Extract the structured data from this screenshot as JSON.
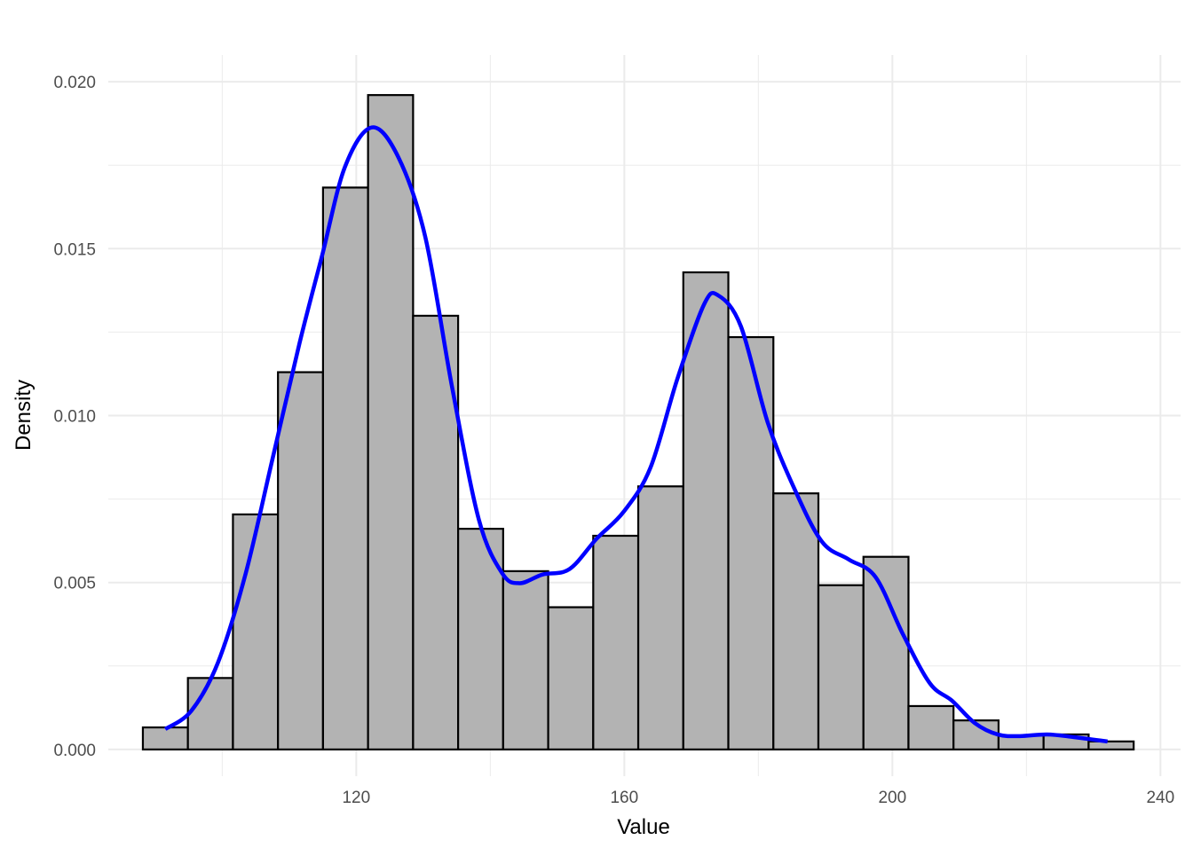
{
  "chart_data": {
    "type": "bar",
    "subtype": "histogram-with-density",
    "title": "",
    "xlabel": "Value",
    "ylabel": "Density",
    "xlim": [
      83,
      243
    ],
    "ylim": [
      -0.0008,
      0.0208
    ],
    "grid": true,
    "x_ticks": [
      120,
      160,
      200,
      240
    ],
    "x_tick_labels": [
      "120",
      "160",
      "200",
      "240"
    ],
    "y_ticks": [
      0,
      0.005,
      0.01,
      0.015,
      0.02
    ],
    "y_tick_labels": [
      "0.000",
      "0.005",
      "0.010",
      "0.015",
      "0.020"
    ],
    "bin_start": 88.16,
    "bin_width": 6.72,
    "histogram": {
      "fill": "#b3b3b3",
      "stroke": "#000000",
      "values": [
        0.00066,
        0.00214,
        0.00704,
        0.0113,
        0.01683,
        0.0196,
        0.01299,
        0.00661,
        0.00534,
        0.00426,
        0.0064,
        0.00788,
        0.01429,
        0.01235,
        0.00767,
        0.00492,
        0.00577,
        0.0013,
        0.00087,
        0.00042,
        0.00045,
        0.00024
      ]
    },
    "density": {
      "color": "#0000ff",
      "x": [
        91.5,
        95.4,
        99.4,
        103.5,
        107.5,
        111.5,
        114.9,
        118.3,
        122.3,
        126.3,
        130.3,
        134.3,
        138.3,
        141.8,
        144.4,
        147.8,
        151.8,
        155.9,
        159.9,
        163.9,
        167.9,
        171.9,
        174.0,
        177.4,
        181.4,
        185.4,
        189.5,
        193.5,
        197.5,
        201.6,
        205.6,
        208.9,
        212.3,
        215.7,
        219.0,
        223.1,
        227.1,
        232.1
      ],
      "y": [
        0.00061,
        0.00116,
        0.00262,
        0.00527,
        0.0087,
        0.01214,
        0.01479,
        0.01744,
        0.01863,
        0.01773,
        0.01535,
        0.01085,
        0.00688,
        0.00527,
        0.00498,
        0.00524,
        0.0054,
        0.00632,
        0.00712,
        0.00844,
        0.01109,
        0.01333,
        0.0136,
        0.01267,
        0.00979,
        0.0078,
        0.00622,
        0.00569,
        0.00516,
        0.00344,
        0.00198,
        0.00146,
        0.00079,
        0.00045,
        0.0004,
        0.00045,
        0.00037,
        0.00024
      ]
    }
  }
}
